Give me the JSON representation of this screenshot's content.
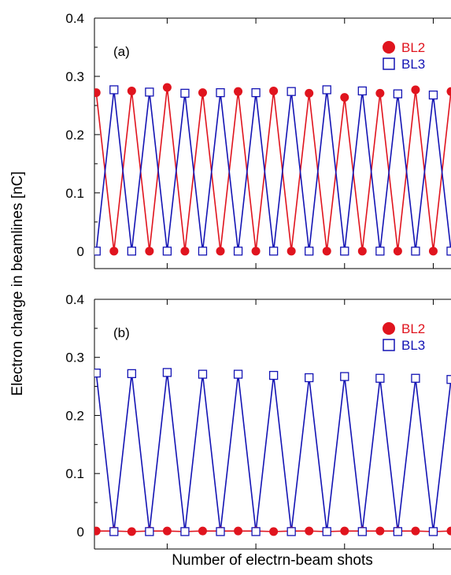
{
  "figure": {
    "ylabel": "Electron charge in beamlines [nC]",
    "xlabel": "Number of electrn-beam shots"
  },
  "chart_data": [
    {
      "type": "line",
      "panel_label": "(a)",
      "ylim": [
        -0.03,
        0.4
      ],
      "xlim": [
        -0.1,
        20.0
      ],
      "yticks": [
        0,
        0.1,
        0.2,
        0.3,
        0.4
      ],
      "ytick_labels": [
        "0",
        "0.1",
        "0.2",
        "0.3",
        "0.4"
      ],
      "xticks": [
        4,
        9,
        14,
        19
      ],
      "grid": false,
      "legend_position": "top-right",
      "x": [
        0,
        1,
        2,
        3,
        4,
        5,
        6,
        7,
        8,
        9,
        10,
        11,
        12,
        13,
        14,
        15,
        16,
        17,
        18,
        19,
        20
      ],
      "series": [
        {
          "name": "BL2",
          "color": "#e0141e",
          "marker": "filled-circle",
          "values": [
            0.272,
            0,
            0.275,
            0,
            0.281,
            0,
            0.272,
            0,
            0.274,
            0,
            0.275,
            0,
            0.271,
            0,
            0.264,
            0,
            0.271,
            0,
            0.277,
            0,
            0.274
          ]
        },
        {
          "name": "BL3",
          "color": "#1414b4",
          "marker": "open-square",
          "values": [
            0,
            0.277,
            0,
            0.273,
            0,
            0.271,
            0,
            0.272,
            0,
            0.272,
            0,
            0.274,
            0,
            0.277,
            0,
            0.275,
            0,
            0.27,
            0,
            0.268,
            0
          ]
        }
      ]
    },
    {
      "type": "line",
      "panel_label": "(b)",
      "ylim": [
        -0.03,
        0.4
      ],
      "xlim": [
        -0.1,
        20.0
      ],
      "yticks": [
        0,
        0.1,
        0.2,
        0.3,
        0.4
      ],
      "ytick_labels": [
        "0",
        "0.1",
        "0.2",
        "0.3",
        "0.4"
      ],
      "xticks": [
        4,
        9,
        14,
        19
      ],
      "grid": false,
      "legend_position": "top-right",
      "x": [
        0,
        1,
        2,
        3,
        4,
        5,
        6,
        7,
        8,
        9,
        10,
        11,
        12,
        13,
        14,
        15,
        16,
        17,
        18,
        19,
        20
      ],
      "series": [
        {
          "name": "BL2",
          "color": "#e0141e",
          "marker": "filled-circle",
          "values": [
            0.001,
            0.001,
            0,
            0.001,
            0.001,
            0,
            0.001,
            0.001,
            0.001,
            0.001,
            0,
            0.001,
            0.001,
            0,
            0.001,
            0.001,
            0.001,
            0.001,
            0.001,
            0,
            0.001
          ]
        },
        {
          "name": "BL3",
          "color": "#1414b4",
          "marker": "open-square",
          "values": [
            0.273,
            0,
            0.272,
            0,
            0.274,
            0,
            0.271,
            0,
            0.271,
            0,
            0.269,
            0,
            0.265,
            0,
            0.267,
            0,
            0.264,
            0,
            0.264,
            0,
            0.262
          ]
        }
      ]
    }
  ]
}
